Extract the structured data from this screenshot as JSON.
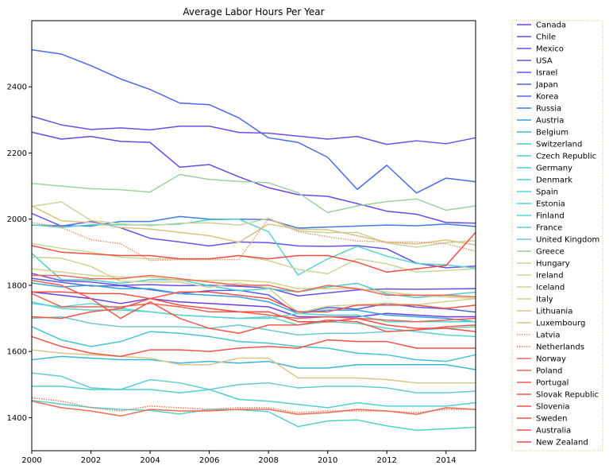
{
  "chart_data": {
    "type": "line",
    "title": "Average Labor Hours Per Year",
    "xlabel": "",
    "ylabel": "",
    "xlim": [
      2000,
      2015
    ],
    "ylim": [
      1300,
      2600
    ],
    "xticks": [
      2000,
      2002,
      2004,
      2006,
      2008,
      2010,
      2012,
      2014
    ],
    "yticks": [
      1400,
      1600,
      1800,
      2000,
      2200,
      2400
    ],
    "grid": false,
    "legend_position": "outside-right",
    "x": [
      2000,
      2001,
      2002,
      2003,
      2004,
      2005,
      2006,
      2007,
      2008,
      2009,
      2010,
      2011,
      2012,
      2013,
      2014,
      2015
    ],
    "series": [
      {
        "name": "Canada",
        "color": "#6a3ee6",
        "dash": "solid",
        "values": [
          1780,
          1770,
          1760,
          1745,
          1760,
          1750,
          1745,
          1740,
          1735,
          1705,
          1705,
          1705,
          1715,
          1710,
          1705,
          1705
        ]
      },
      {
        "name": "Chile",
        "color": "#6c45e8",
        "dash": "solid",
        "values": [
          2263,
          2242,
          2250,
          2235,
          2232,
          2157,
          2165,
          2128,
          2095,
          2074,
          2069,
          2047,
          2024,
          2015,
          1990,
          1988
        ]
      },
      {
        "name": "Mexico",
        "color": "#6f4ce9",
        "dash": "solid",
        "values": [
          2311,
          2285,
          2271,
          2276,
          2270,
          2281,
          2281,
          2262,
          2260,
          2251,
          2242,
          2250,
          2226,
          2237,
          2228,
          2246
        ]
      },
      {
        "name": "USA",
        "color": "#6b4ee9",
        "dash": "solid",
        "values": [
          1836,
          1814,
          1810,
          1800,
          1802,
          1799,
          1800,
          1797,
          1792,
          1768,
          1777,
          1786,
          1789,
          1788,
          1789,
          1790
        ]
      },
      {
        "name": "Israel",
        "color": "#6256ea",
        "dash": "solid",
        "values": [
          2017,
          1979,
          1993,
          1974,
          1942,
          1931,
          1919,
          1931,
          1929,
          1919,
          1918,
          1920,
          1910,
          1867,
          1853,
          1858
        ]
      },
      {
        "name": "Japan",
        "color": "#585ee9",
        "dash": "solid",
        "values": [
          1821,
          1809,
          1798,
          1799,
          1787,
          1775,
          1784,
          1785,
          1771,
          1714,
          1733,
          1728,
          1745,
          1734,
          1729,
          1719
        ]
      },
      {
        "name": "Korea",
        "color": "#4b6ae8",
        "dash": "solid",
        "values": [
          2512,
          2499,
          2464,
          2424,
          2392,
          2351,
          2346,
          2306,
          2246,
          2232,
          2187,
          2090,
          2163,
          2079,
          2124,
          2113
        ]
      },
      {
        "name": "Russia",
        "color": "#3f7de5",
        "dash": "solid",
        "values": [
          1982,
          1980,
          1979,
          1993,
          1993,
          2008,
          2000,
          2000,
          1999,
          1973,
          1976,
          1979,
          1982,
          1980,
          1985,
          1978
        ]
      },
      {
        "name": "Austria",
        "color": "#37a3d9",
        "dash": "solid",
        "values": [
          1807,
          1795,
          1800,
          1790,
          1790,
          1775,
          1770,
          1765,
          1750,
          1715,
          1725,
          1725,
          1710,
          1705,
          1700,
          1690
        ]
      },
      {
        "name": "Belgium",
        "color": "#3eb5d3",
        "dash": "solid",
        "values": [
          1575,
          1585,
          1580,
          1575,
          1575,
          1565,
          1570,
          1565,
          1570,
          1550,
          1550,
          1560,
          1560,
          1560,
          1560,
          1545
        ]
      },
      {
        "name": "Switzerland",
        "color": "#45c5cd",
        "dash": "solid",
        "values": [
          1675,
          1635,
          1615,
          1630,
          1660,
          1655,
          1645,
          1630,
          1625,
          1615,
          1610,
          1595,
          1590,
          1575,
          1570,
          1590
        ]
      },
      {
        "name": "Czech Republic",
        "color": "#49cdcb",
        "dash": "solid",
        "values": [
          1896,
          1817,
          1816,
          1806,
          1817,
          1817,
          1799,
          1784,
          1790,
          1780,
          1795,
          1806,
          1774,
          1763,
          1771,
          1779
        ]
      },
      {
        "name": "Germany",
        "color": "#4dd4c6",
        "dash": "solid",
        "values": [
          1452,
          1441,
          1431,
          1425,
          1422,
          1411,
          1425,
          1424,
          1418,
          1373,
          1390,
          1393,
          1375,
          1362,
          1366,
          1371
        ]
      },
      {
        "name": "Denmark",
        "color": "#4fd1cf",
        "dash": "solid",
        "values": [
          1495,
          1495,
          1485,
          1485,
          1485,
          1475,
          1485,
          1455,
          1450,
          1440,
          1430,
          1445,
          1435,
          1435,
          1435,
          1445
        ]
      },
      {
        "name": "Spain",
        "color": "#51d5d5",
        "dash": "solid",
        "values": [
          1745,
          1735,
          1745,
          1730,
          1720,
          1710,
          1705,
          1700,
          1700,
          1715,
          1710,
          1710,
          1690,
          1690,
          1690,
          1690
        ]
      },
      {
        "name": "Estonia",
        "color": "#57d2cf",
        "dash": "solid",
        "values": [
          1983,
          1975,
          1983,
          1983,
          1982,
          1985,
          1998,
          2000,
          1962,
          1831,
          1880,
          1918,
          1888,
          1866,
          1862,
          1852
        ]
      },
      {
        "name": "Finland",
        "color": "#5dd0d0",
        "dash": "solid",
        "values": [
          1750,
          1730,
          1725,
          1725,
          1720,
          1710,
          1705,
          1700,
          1705,
          1680,
          1690,
          1685,
          1670,
          1660,
          1650,
          1645
        ]
      },
      {
        "name": "France",
        "color": "#62ccd2",
        "dash": "solid",
        "values": [
          1535,
          1525,
          1490,
          1485,
          1515,
          1505,
          1485,
          1500,
          1505,
          1490,
          1495,
          1495,
          1490,
          1475,
          1475,
          1480
        ]
      },
      {
        "name": "United Kingdom",
        "color": "#6ec9cb",
        "dash": "solid",
        "values": [
          1700,
          1705,
          1685,
          1675,
          1675,
          1675,
          1670,
          1680,
          1665,
          1650,
          1655,
          1655,
          1660,
          1665,
          1670,
          1675
        ]
      },
      {
        "name": "Greece",
        "color": "#9fd0a3",
        "dash": "solid",
        "values": [
          2108,
          2100,
          2092,
          2089,
          2082,
          2135,
          2120,
          2114,
          2110,
          2080,
          2020,
          2040,
          2053,
          2061,
          2027,
          2040
        ]
      },
      {
        "name": "Hungary",
        "color": "#c2d79a",
        "dash": "solid",
        "values": [
          2039,
          2052,
          1996,
          1986,
          1980,
          1988,
          1989,
          1982,
          2002,
          1965,
          1959,
          1960,
          1928,
          1915,
          1929,
          1935
        ]
      },
      {
        "name": "Ireland",
        "color": "#cdd496",
        "dash": "solid",
        "values": [
          1926,
          1912,
          1900,
          1885,
          1880,
          1880,
          1880,
          1890,
          1875,
          1848,
          1835,
          1880,
          1865,
          1840,
          1845,
          1850
        ]
      },
      {
        "name": "Iceland",
        "color": "#d2d090",
        "dash": "solid",
        "values": [
          1885,
          1882,
          1857,
          1812,
          1810,
          1810,
          1794,
          1807,
          1792,
          1716,
          1737,
          1741,
          1746,
          1741,
          1751,
          1760
        ]
      },
      {
        "name": "Italy",
        "color": "#d6cd8a",
        "dash": "solid",
        "values": [
          1850,
          1840,
          1830,
          1825,
          1825,
          1815,
          1815,
          1815,
          1810,
          1790,
          1790,
          1790,
          1780,
          1770,
          1765,
          1760
        ]
      },
      {
        "name": "Lithuania",
        "color": "#d6c788",
        "dash": "solid",
        "values": [
          1605,
          1595,
          1590,
          1585,
          1580,
          1560,
          1560,
          1580,
          1580,
          1520,
          1520,
          1520,
          1515,
          1505,
          1505,
          1505
        ]
      },
      {
        "name": "Luxembourg",
        "color": "#dac185",
        "dash": "solid",
        "values": [
          2040,
          1995,
          1990,
          1975,
          1970,
          1960,
          1950,
          1930,
          1985,
          1970,
          1968,
          1950,
          1930,
          1925,
          1937,
          1922
        ]
      },
      {
        "name": "Latvia",
        "color": "#e9956c",
        "dash": "dotted",
        "values": [
          1990,
          1975,
          1938,
          1926,
          1875,
          1878,
          1878,
          1878,
          2002,
          1962,
          1947,
          1934,
          1931,
          1931,
          1926,
          1903
        ]
      },
      {
        "name": "Netherlands",
        "color": "#ee7a5b",
        "dash": "dotted",
        "values": [
          1460,
          1450,
          1430,
          1420,
          1435,
          1430,
          1425,
          1430,
          1430,
          1415,
          1420,
          1420,
          1420,
          1415,
          1425,
          1425
        ]
      },
      {
        "name": "Norway",
        "color": "#ef6c52",
        "dash": "solid",
        "values": [
          1450,
          1430,
          1420,
          1405,
          1425,
          1420,
          1420,
          1425,
          1425,
          1410,
          1415,
          1425,
          1420,
          1410,
          1430,
          1425
        ]
      },
      {
        "name": "Poland",
        "color": "#ef6650",
        "dash": "solid",
        "values": [
          1830,
          1830,
          1820,
          1820,
          1830,
          1820,
          1810,
          1800,
          1800,
          1780,
          1800,
          1790,
          1770,
          1770,
          1770,
          1765
        ]
      },
      {
        "name": "Portugal",
        "color": "#f0624e",
        "dash": "solid",
        "values": [
          1775,
          1735,
          1735,
          1735,
          1745,
          1735,
          1720,
          1720,
          1710,
          1700,
          1705,
          1700,
          1695,
          1690,
          1695,
          1700
        ]
      },
      {
        "name": "Slovak Republic",
        "color": "#f0584a",
        "dash": "solid",
        "values": [
          1815,
          1800,
          1760,
          1700,
          1750,
          1700,
          1670,
          1655,
          1680,
          1680,
          1695,
          1690,
          1660,
          1665,
          1675,
          1680
        ]
      },
      {
        "name": "Slovenia",
        "color": "#f15548",
        "dash": "solid",
        "values": [
          1705,
          1700,
          1720,
          1730,
          1760,
          1780,
          1780,
          1770,
          1760,
          1720,
          1720,
          1740,
          1740,
          1740,
          1730,
          1740
        ]
      },
      {
        "name": "Sweden",
        "color": "#f15346",
        "dash": "solid",
        "values": [
          1645,
          1615,
          1595,
          1585,
          1605,
          1605,
          1600,
          1610,
          1615,
          1610,
          1635,
          1630,
          1630,
          1610,
          1610,
          1610
        ]
      },
      {
        "name": "Australia",
        "color": "#f05144",
        "dash": "solid",
        "values": [
          1780,
          1780,
          1775,
          1775,
          1760,
          1740,
          1730,
          1720,
          1720,
          1690,
          1690,
          1700,
          1680,
          1670,
          1670,
          1660
        ]
      },
      {
        "name": "New Zealand",
        "color": "#ef4e43",
        "dash": "solid",
        "values": [
          1920,
          1900,
          1895,
          1890,
          1890,
          1880,
          1880,
          1890,
          1880,
          1890,
          1890,
          1870,
          1840,
          1850,
          1860,
          1960
        ]
      }
    ]
  }
}
